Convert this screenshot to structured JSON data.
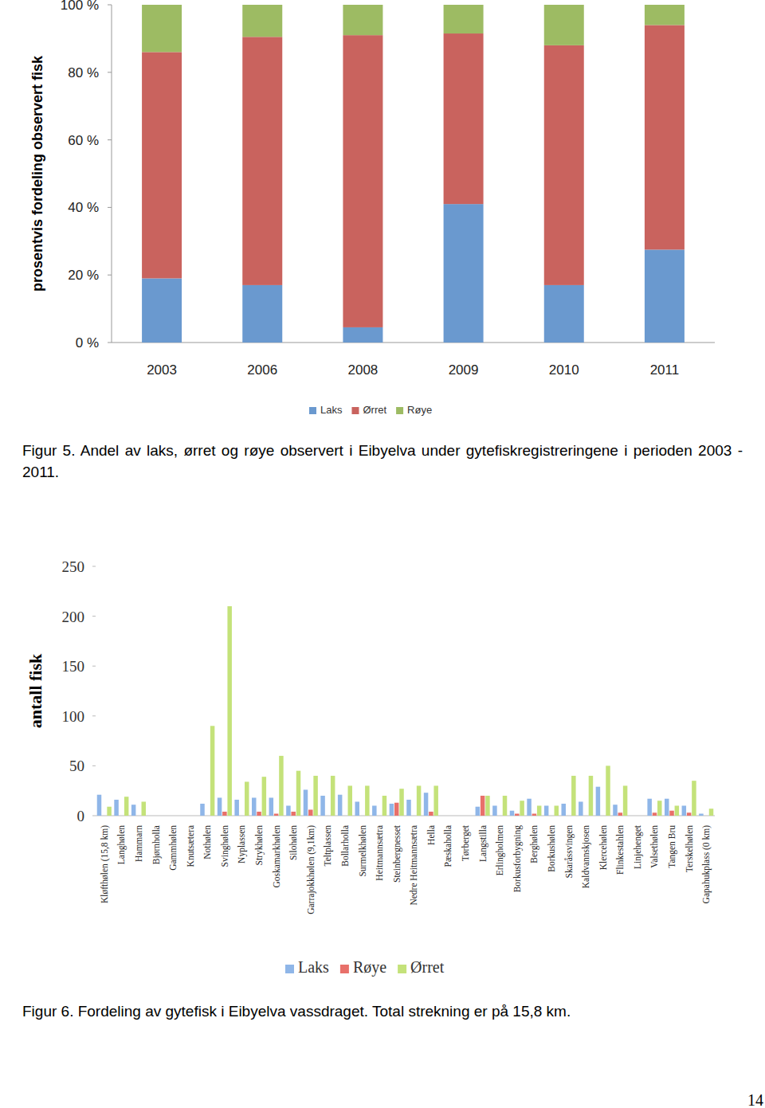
{
  "chart_data": [
    {
      "type": "bar",
      "stacked": true,
      "title": "Figur 5. Andel av laks, ørret og røye observert i Eibyelva under gytefiskregistreringene i perioden 2003 - 2011.",
      "y_label": "prosentvis fordeling observert fisk",
      "categories": [
        "2003",
        "2006",
        "2008",
        "2009",
        "2010",
        "2011"
      ],
      "series": [
        {
          "name": "Laks",
          "color": "#6a99cf",
          "values": [
            19,
            17,
            4.5,
            41,
            17,
            27.5
          ]
        },
        {
          "name": "Ørret",
          "color": "#c9635e",
          "values": [
            67,
            73.5,
            86.5,
            50.5,
            71,
            66.5
          ]
        },
        {
          "name": "Røye",
          "color": "#9dbb63",
          "values": [
            14,
            9.5,
            9,
            8.5,
            12,
            6
          ]
        }
      ],
      "ylim": [
        0,
        100
      ],
      "yticks": [
        {
          "value": 0,
          "label": "0 %"
        },
        {
          "value": 20,
          "label": "20 %"
        },
        {
          "value": 40,
          "label": "40 %"
        },
        {
          "value": 60,
          "label": "60 %"
        },
        {
          "value": 80,
          "label": "80 %"
        },
        {
          "value": 100,
          "label": "100 %"
        }
      ],
      "grid": false,
      "legend": "bottom"
    },
    {
      "type": "bar",
      "title": "Figur 6. Fordeling av gytefisk i Eibyelva vassdraget. Total strekning er på 15,8 km.",
      "y_label": "antall fisk",
      "categories": [
        "Kløfthølen (15,8 km)",
        "Langhølen",
        "Hammarn",
        "Bjørnholla",
        "Gammhølen",
        "Knutsætera",
        "Nothølen",
        "Svinghølen",
        "Nyplassen",
        "Strykhølen",
        "Goskamarkhølen",
        "Silohølen",
        "Garrajokkhølen (9,1km)",
        "Teltplassen",
        "Bollarholla",
        "Surmelkhølen",
        "Heitmannsætra",
        "Steinbergnesset",
        "Nedre Heitmannsætra",
        "Hella",
        "Pæskaholla",
        "Tørberget",
        "Langstilla",
        "Erlingholmen",
        "Borkusforbygning",
        "Berghølen",
        "Borkushølen",
        "Skaråssvingen",
        "Kaldvannskjosen",
        "Klercehølen",
        "Flinkestahlen",
        "Linjehenget",
        "Valsethølen",
        "Tangen Bru",
        "Terskelhølen",
        "Gapahukplass (0 km)"
      ],
      "series": [
        {
          "name": "Laks",
          "color": "#8fb6e8",
          "values": [
            21,
            16,
            11,
            0,
            0,
            0,
            12,
            18,
            16,
            18,
            18,
            10,
            26,
            20,
            21,
            14,
            10,
            12,
            16,
            23,
            0,
            0,
            9,
            10,
            5,
            17,
            10,
            12,
            14,
            29,
            11,
            0,
            17,
            17,
            10,
            2
          ]
        },
        {
          "name": "Røye",
          "color": "#e8706a",
          "values": [
            0,
            0,
            0,
            0,
            0,
            0,
            0,
            4,
            0,
            4,
            2,
            4,
            6,
            0,
            0,
            0,
            0,
            13,
            0,
            4,
            0,
            0,
            20,
            0,
            2,
            2,
            0,
            0,
            0,
            0,
            3,
            0,
            3,
            5,
            3,
            0
          ]
        },
        {
          "name": "Ørret",
          "color": "#c4e27a",
          "values": [
            9,
            19,
            14,
            0,
            0,
            0,
            90,
            210,
            34,
            39,
            60,
            45,
            40,
            40,
            30,
            30,
            20,
            27,
            30,
            30,
            0,
            0,
            20,
            20,
            15,
            10,
            10,
            40,
            40,
            50,
            30,
            0,
            15,
            10,
            35,
            7
          ]
        }
      ],
      "ylim": [
        0,
        250
      ],
      "yticks": [
        0,
        50,
        100,
        150,
        200,
        250
      ],
      "grid": false,
      "legend": "bottom"
    }
  ],
  "page_number": 14
}
